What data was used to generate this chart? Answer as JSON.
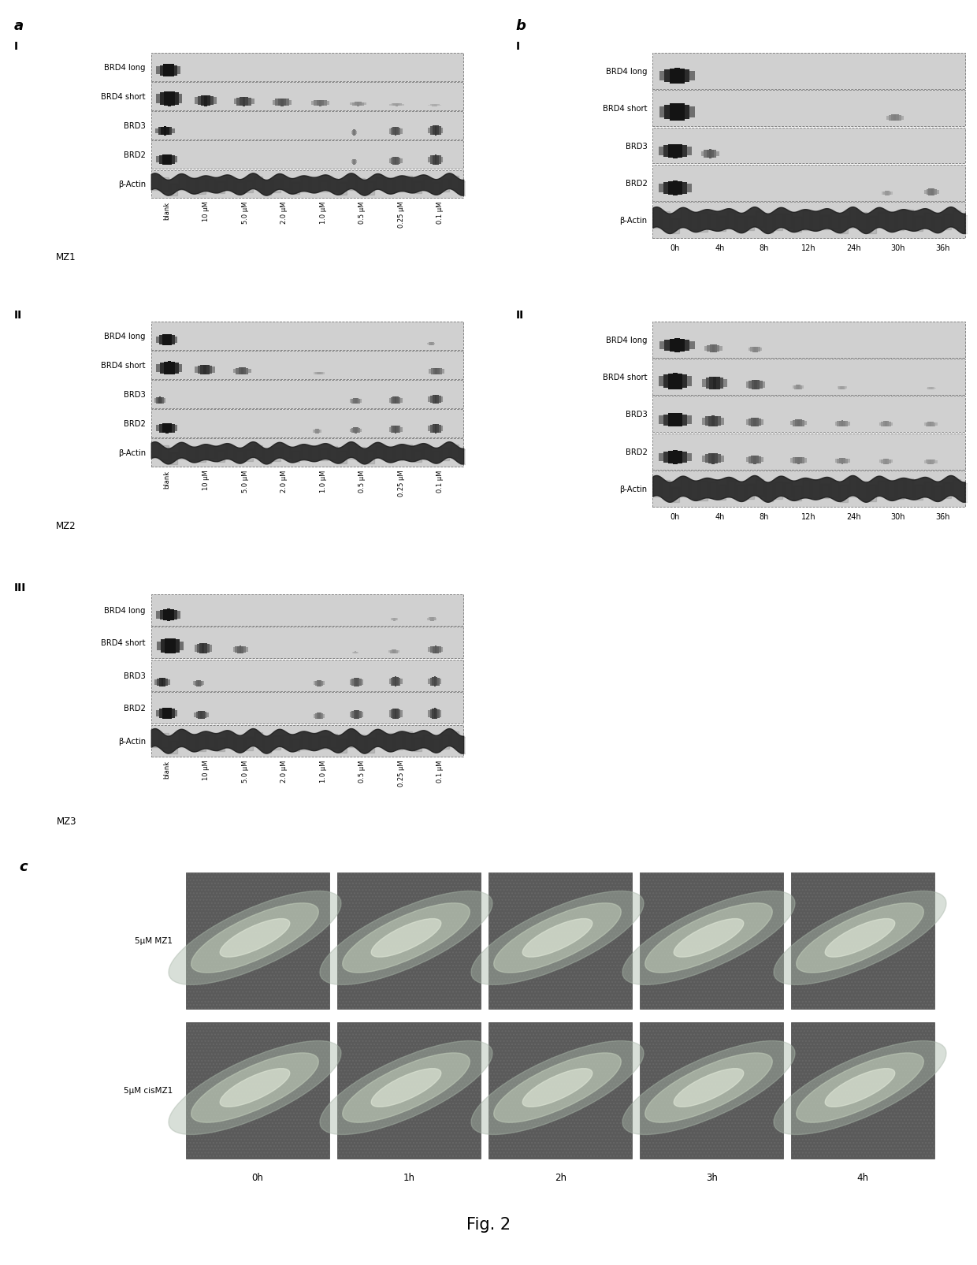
{
  "fig_width": 12.4,
  "fig_height": 16.06,
  "bg_color": "#ffffff",
  "panel_a_letter": "a",
  "panel_b_letter": "b",
  "panel_c_letter": "c",
  "row_labels": [
    "BRD4 long",
    "BRD4 short",
    "BRD3",
    "BRD2",
    "β-Actin"
  ],
  "dose_labels": [
    "blank",
    "10 μM",
    "5.0 μM",
    "2.0 μM",
    "1.0 μM",
    "0.5 μM",
    "0.25 μM",
    "0.1 μM"
  ],
  "time_labels": [
    "0h",
    "4h",
    "8h",
    "12h",
    "24h",
    "30h",
    "36h"
  ],
  "compound_labels": [
    "MZ1",
    "MZ2",
    "MZ3"
  ],
  "fig_caption": "Fig. 2",
  "cell_label_mz1": "5μM MZ1",
  "cell_label_cismz1": "5μM cisMZ1",
  "cell_time_labels": [
    "0h",
    "1h",
    "2h",
    "3h",
    "4h"
  ],
  "blot_bg": "#d0d0d0",
  "blot_edge": "#888888",
  "band_dark": "#0a0a0a",
  "text_color": "#000000"
}
